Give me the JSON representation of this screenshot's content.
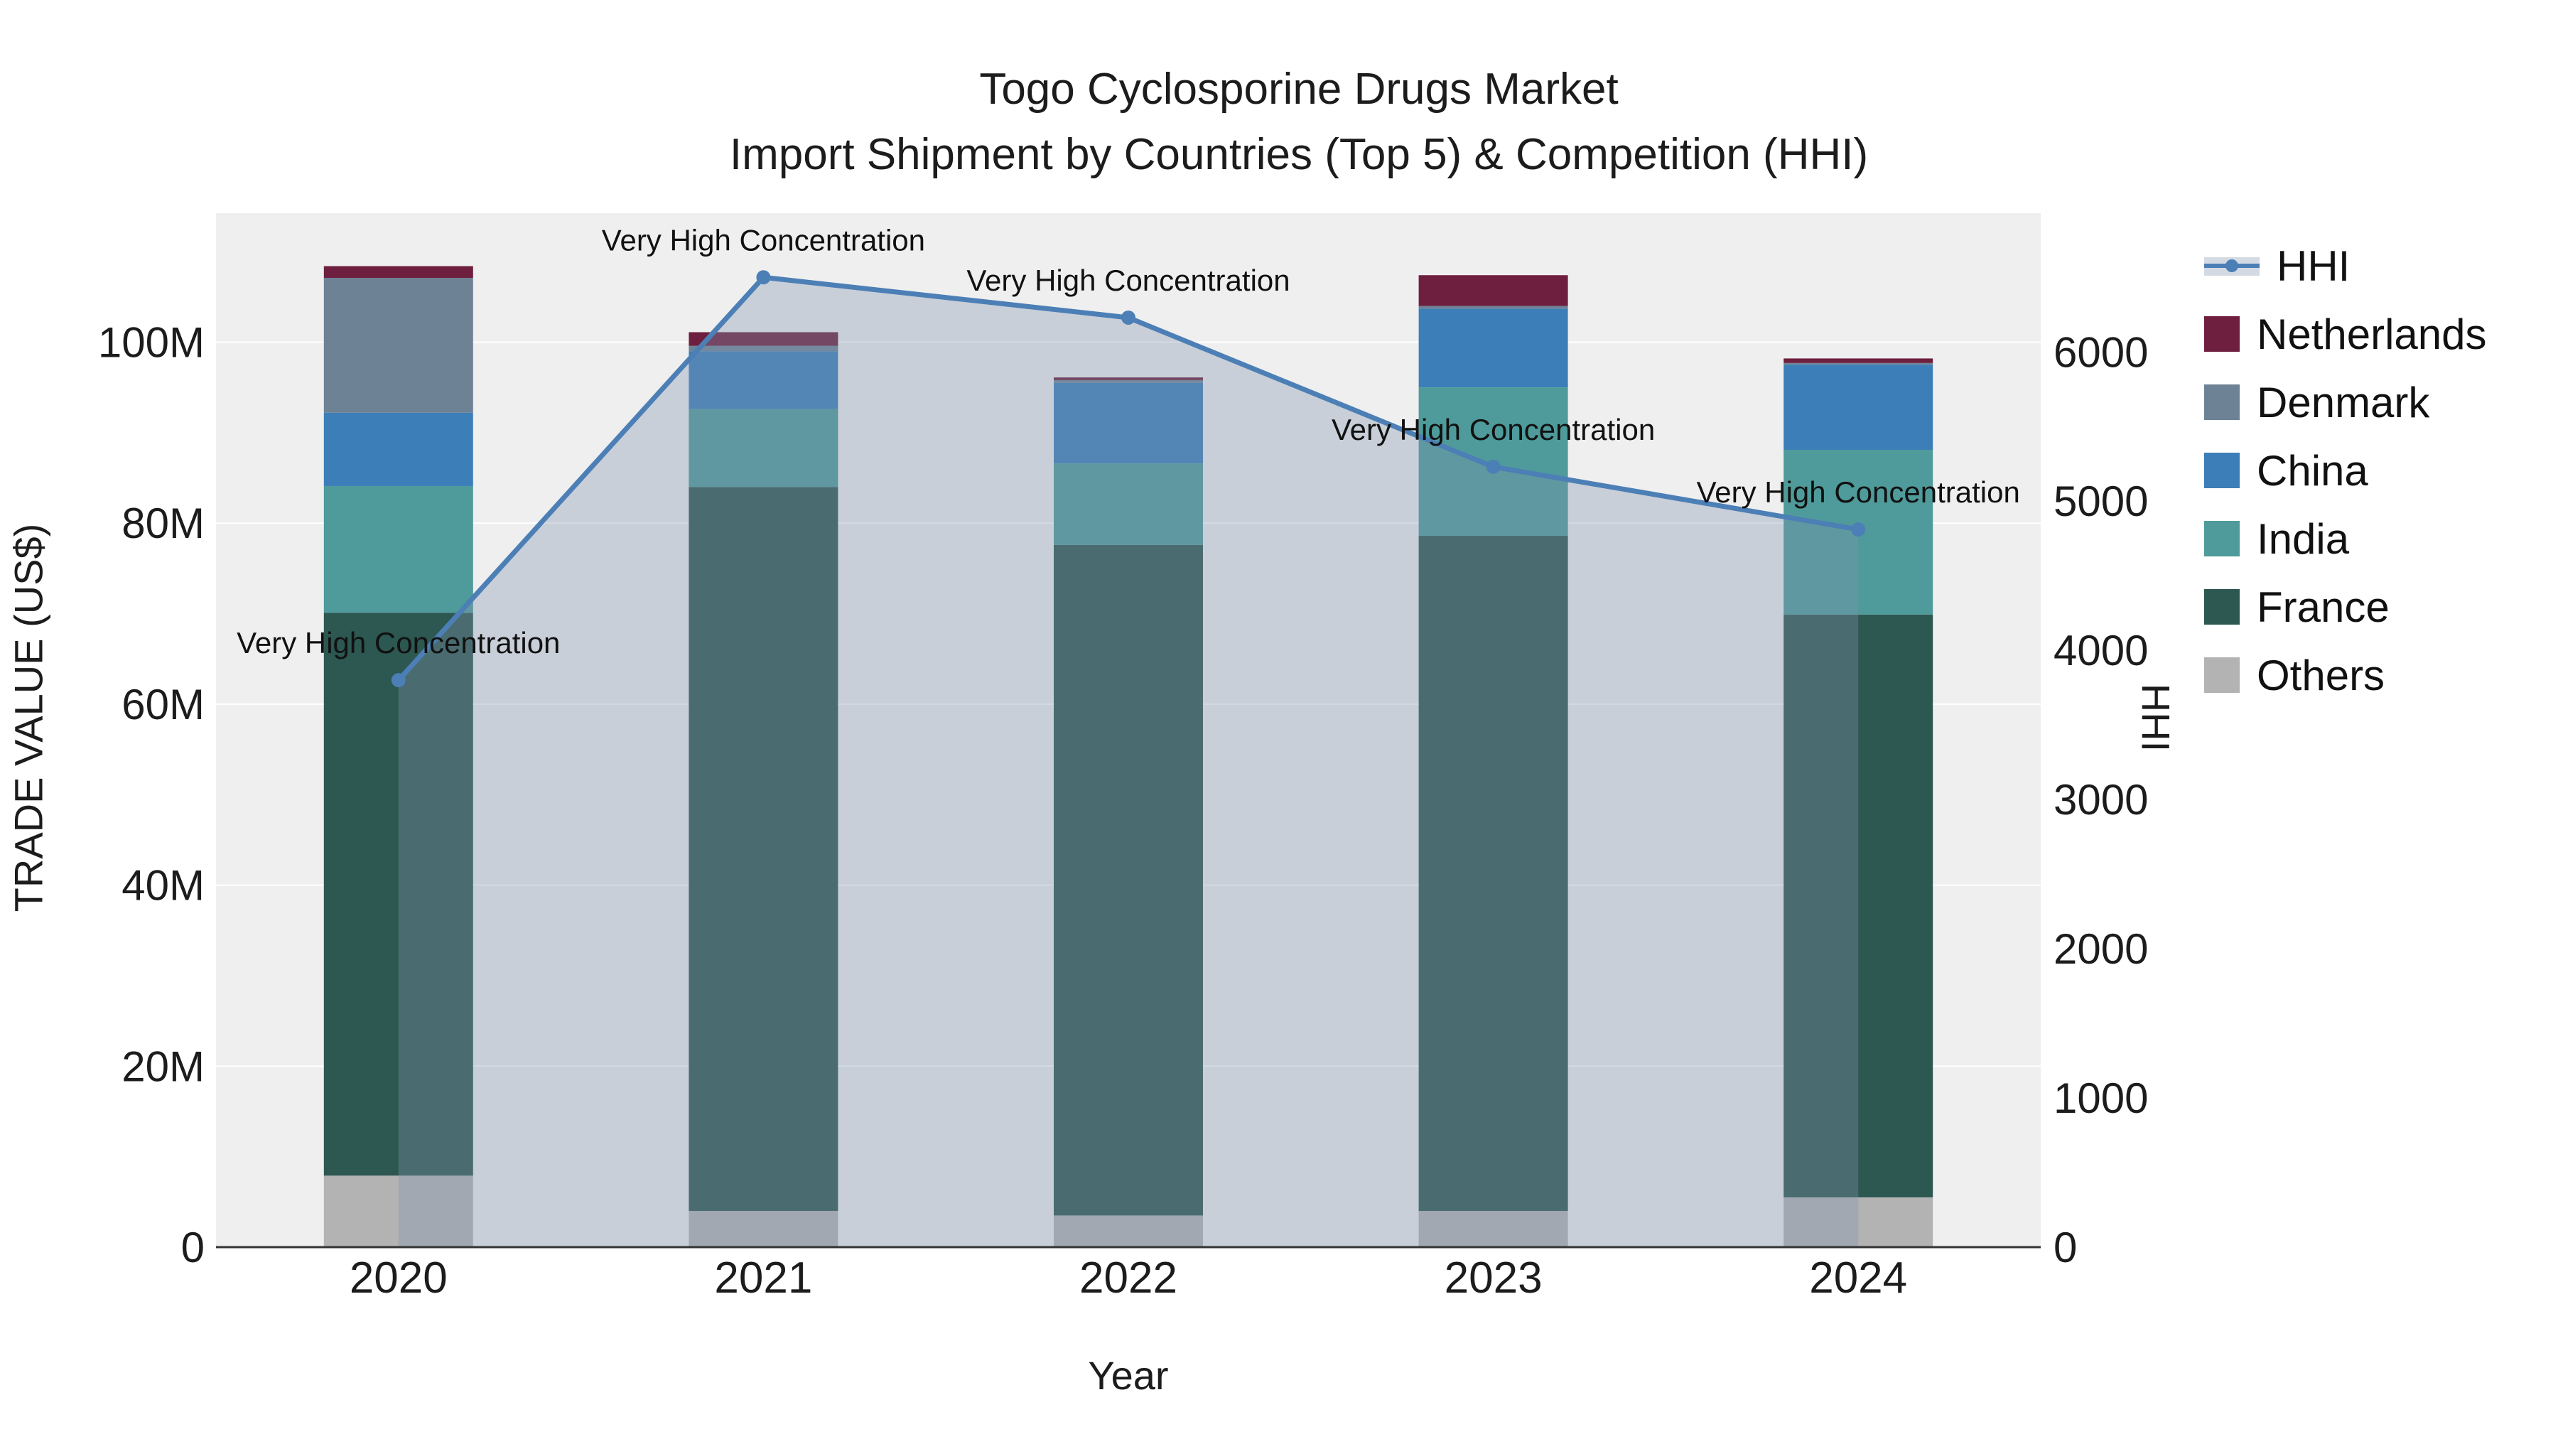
{
  "title": {
    "line1": "Togo Cyclosporine Drugs Market",
    "line2": "Import Shipment by Countries (Top 5) & Competition (HHI)"
  },
  "axes": {
    "y_left": {
      "label": "TRADE VALUE (US$)",
      "ticks": [
        "0",
        "20M",
        "40M",
        "60M",
        "80M",
        "100M"
      ],
      "tick_values": [
        0,
        20,
        40,
        60,
        80,
        100
      ],
      "max": 114.25
    },
    "y_right": {
      "label": "HHI",
      "ticks": [
        "0",
        "1000",
        "2000",
        "3000",
        "4000",
        "5000",
        "6000"
      ],
      "tick_values": [
        0,
        1000,
        2000,
        3000,
        4000,
        5000,
        6000
      ],
      "max": 6930
    },
    "x": {
      "label": "Year"
    }
  },
  "chart_data": {
    "type": "bar",
    "subtype": "stacked-bar-with-line-overlay",
    "categories": [
      "2020",
      "2021",
      "2022",
      "2023",
      "2024"
    ],
    "unit": "Million US$",
    "ylim_left": [
      0,
      114.25
    ],
    "ylim_right": [
      0,
      6930
    ],
    "grid": true,
    "stack_order_bottom_to_top": [
      "Others",
      "France",
      "India",
      "China",
      "Denmark",
      "Netherlands"
    ],
    "series": [
      {
        "name": "Others",
        "color": "#b3b3b3",
        "values": [
          7.9,
          4.0,
          3.5,
          4.0,
          5.5
        ]
      },
      {
        "name": "France",
        "color": "#2d5751",
        "values": [
          62.2,
          80.0,
          74.1,
          74.6,
          64.4
        ]
      },
      {
        "name": "India",
        "color": "#4f9a9a",
        "values": [
          14.0,
          8.6,
          9.0,
          16.4,
          18.2
        ]
      },
      {
        "name": "China",
        "color": "#3c7eb8",
        "values": [
          8.1,
          6.4,
          8.9,
          8.7,
          9.4
        ]
      },
      {
        "name": "Denmark",
        "color": "#6e8296",
        "values": [
          14.9,
          0.6,
          0.3,
          0.3,
          0.2
        ]
      },
      {
        "name": "Netherlands",
        "color": "#6e1e3e",
        "values": [
          1.3,
          1.5,
          0.3,
          3.4,
          0.5
        ]
      }
    ],
    "line": {
      "name": "HHI",
      "axis": "right",
      "color": "#4c7fb5",
      "fill": "rgba(130,150,175,0.35)",
      "values": [
        3800,
        6500,
        6230,
        5230,
        4810
      ]
    },
    "annotations": [
      {
        "year": "2020",
        "text": "Very High Concentration"
      },
      {
        "year": "2021",
        "text": "Very High Concentration"
      },
      {
        "year": "2022",
        "text": "Very High Concentration"
      },
      {
        "year": "2023",
        "text": "Very High Concentration"
      },
      {
        "year": "2024",
        "text": "Very High Concentration"
      }
    ]
  },
  "legend": {
    "items": [
      {
        "label": "HHI",
        "type": "line",
        "color": "#4c7fb5"
      },
      {
        "label": "Netherlands",
        "type": "swatch",
        "color": "#6e1e3e"
      },
      {
        "label": "Denmark",
        "type": "swatch",
        "color": "#6e8296"
      },
      {
        "label": "China",
        "type": "swatch",
        "color": "#3c7eb8"
      },
      {
        "label": "India",
        "type": "swatch",
        "color": "#4f9a9a"
      },
      {
        "label": "France",
        "type": "swatch",
        "color": "#2d5751"
      },
      {
        "label": "Others",
        "type": "swatch",
        "color": "#b3b3b3"
      }
    ]
  },
  "colors": {
    "plot_bg": "#efefef",
    "gridline": "#ffffff",
    "axis_line": "#333333",
    "text": "#1c1c1c",
    "hhi_fill_legend": "#d3dae3"
  }
}
